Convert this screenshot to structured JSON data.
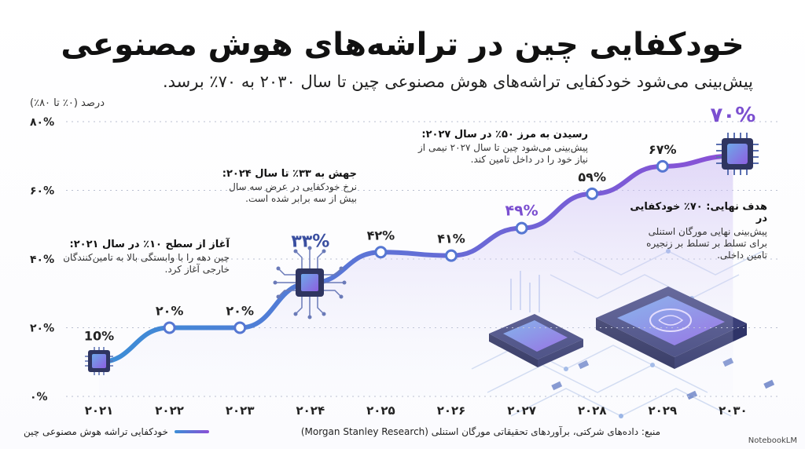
{
  "title": "خودکفایی چین در تراشه‌های هوش مصنوعی",
  "subtitle": "پیش‌بینی می‌شود خودکفایی تراشه‌های هوش مصنوعی چین تا سال ۲۰۳۰ به ۷۰٪ برسد.",
  "unit_label": "درصد (۰٪ تا ۸۰٪)",
  "annotations": [
    {
      "head": "آغاز از سطح ۱۰٪ در سال ۲۰۲۱:",
      "body": "چین دهه را با وابستگی بالا به تامین‌کنندگان خارجی آغاز کرد."
    },
    {
      "head": "جهش به ۳۳٪ تا سال ۲۰۲۴:",
      "body": "نرخ خودکفایی در عرض سه سال بیش از سه برابر شده است."
    },
    {
      "head": "رسیدن به مرز ۵۰٪ در سال ۲۰۲۷:",
      "body": "پیش‌بینی می‌شود چین تا سال ۲۰۲۷ نیمی از نیاز خود را در داخل تامین کند."
    },
    {
      "head": "هدف نهایی: ۷۰٪ خودکفایی در",
      "body": "پیش‌بینی نهایی مورگان استنلی برای تسلط بر تسلط بر زنجیره تامین داخلی."
    }
  ],
  "legend_label": "خودکفایی تراشه هوش مصنوعی چین",
  "source": "منبع: داده‌های شرکتی، برآوردهای تحقیقاتی مورگان استنلی (Morgan Stanley Research)",
  "brand": "NotebookLM",
  "colors": {
    "line_start": "#3b8ed6",
    "line_end": "#8a4fd6",
    "accent": "#7b4fd0",
    "grid": "#b9bfd0"
  },
  "chart_data": {
    "type": "line",
    "x": [
      "۲۰۲۱",
      "۲۰۲۲",
      "۲۰۲۳",
      "۲۰۲۴",
      "۲۰۲۵",
      "۲۰۲۶",
      "۲۰۲۷",
      "۲۰۲۸",
      "۲۰۲۹",
      "۲۰۳۰"
    ],
    "values": [
      10,
      20,
      20,
      33,
      42,
      41,
      49,
      59,
      67,
      70
    ],
    "data_labels": [
      "10%",
      "۲۰%",
      "۲۰%",
      "۳۳%",
      "۴۲%",
      "۴۱%",
      "۴۹%",
      "۵۹%",
      "۶۷%",
      "۷۰%"
    ],
    "y_ticks": [
      "۰%",
      "۲۰%",
      "۴۰%",
      "۶۰%",
      "۸۰%"
    ],
    "ylim": [
      0,
      80
    ],
    "grid": true
  }
}
